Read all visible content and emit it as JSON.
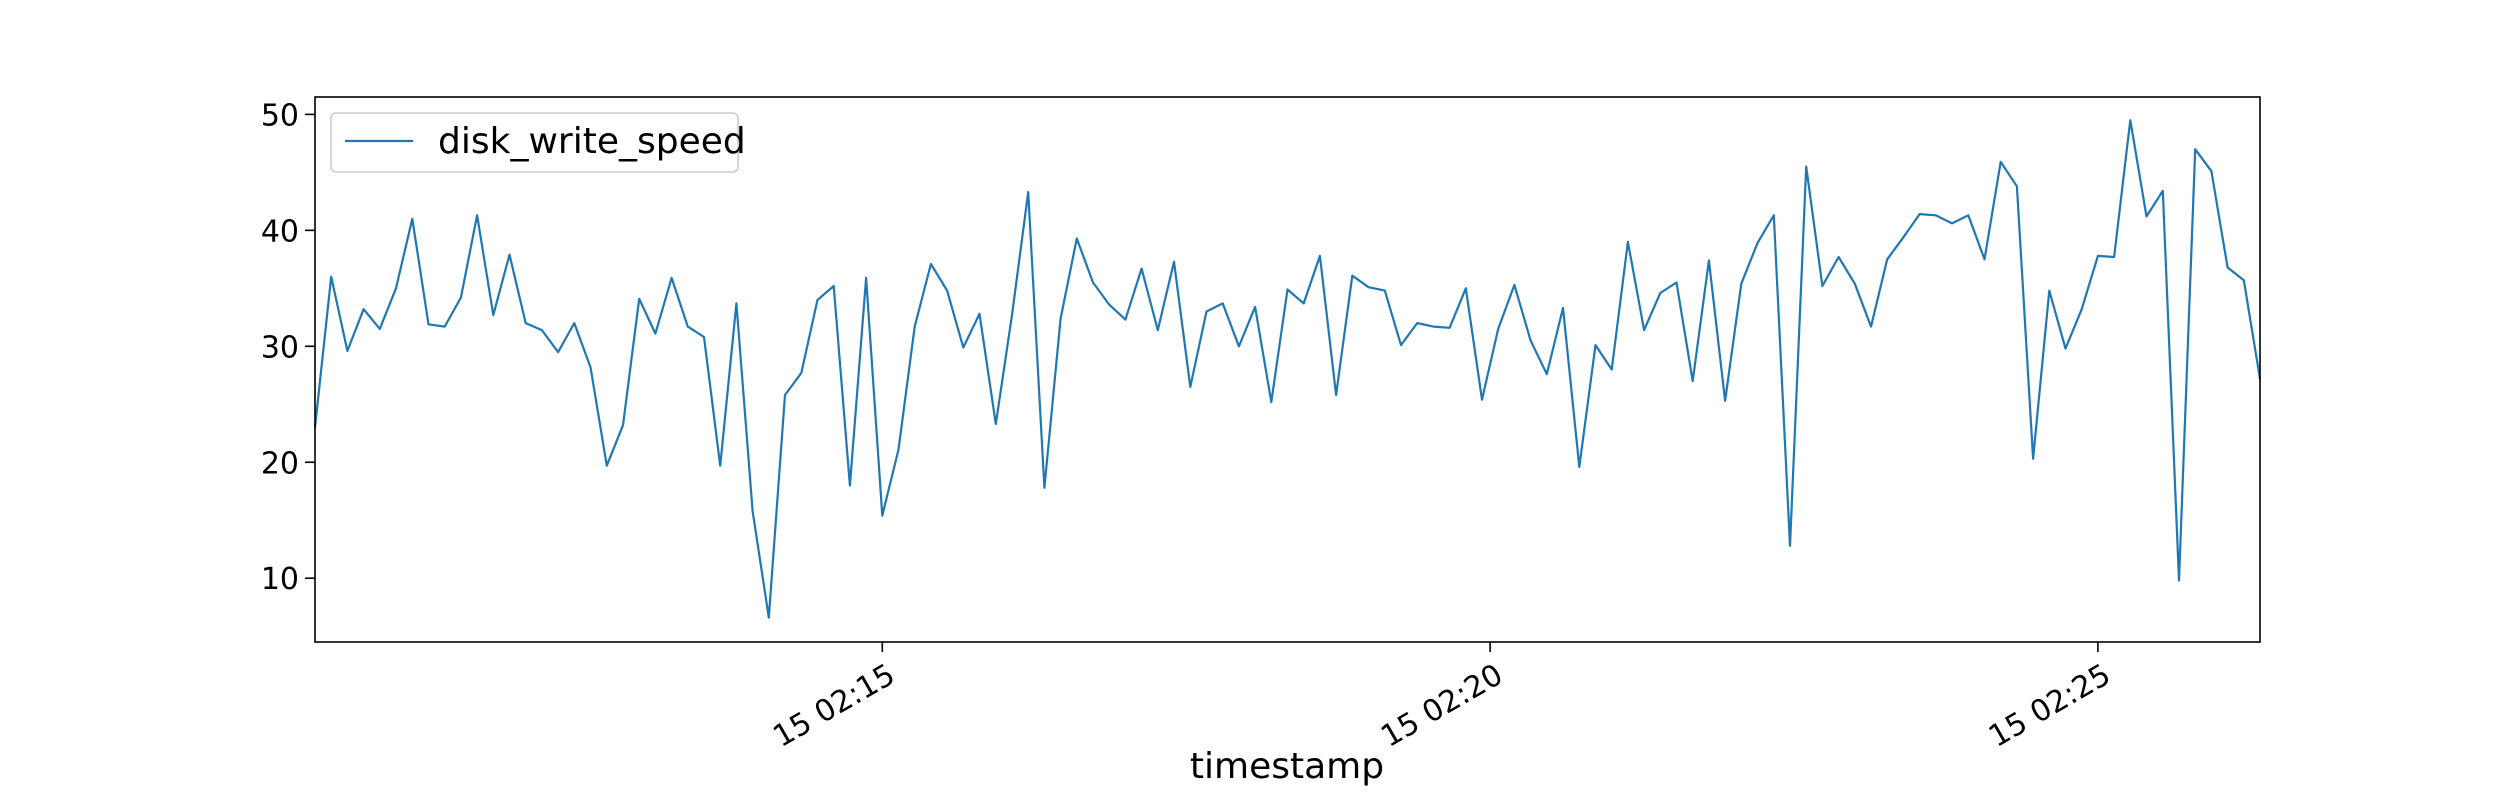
{
  "chart_data": {
    "type": "line",
    "title": "",
    "xlabel": "timestamp",
    "ylabel": "",
    "ylim": [
      4.5,
      51.5
    ],
    "xlim": [
      0,
      120
    ],
    "grid": false,
    "legend_position": "top-left",
    "y_ticks": [
      10,
      20,
      30,
      40,
      50
    ],
    "y_tick_labels": [
      "10",
      "20",
      "30",
      "40",
      "50"
    ],
    "x_ticks": [
      35,
      72.5,
      110
    ],
    "x_tick_labels": [
      "15 02:15",
      "15 02:20",
      "15 02:25"
    ],
    "series": [
      {
        "name": "disk_write_speed",
        "color": "#1f77b4",
        "x": [
          0,
          1,
          2,
          3,
          4,
          5,
          6,
          7,
          8,
          9,
          10,
          11,
          12,
          13,
          14,
          15,
          16,
          17,
          18,
          19,
          20,
          21,
          22,
          23,
          24,
          25,
          26,
          27,
          28,
          29,
          30,
          31,
          32,
          33,
          34,
          35,
          36,
          37,
          38,
          39,
          40,
          41,
          42,
          43,
          44,
          45,
          46,
          47,
          48,
          49,
          50,
          51,
          52,
          53,
          54,
          55,
          56,
          57,
          58,
          59,
          60,
          61,
          62,
          63,
          64,
          65,
          66,
          67,
          68,
          69,
          70,
          71,
          72,
          73,
          74,
          75,
          76,
          77,
          78,
          79,
          80,
          81,
          82,
          83,
          84,
          85,
          86,
          87,
          88,
          89,
          90,
          91,
          92,
          93,
          94,
          95,
          96,
          97,
          98,
          99,
          100,
          101,
          102,
          103,
          104,
          105,
          106,
          107,
          108,
          109,
          110,
          111,
          112,
          113,
          114,
          115,
          116,
          117,
          118,
          119,
          120
        ],
        "values": [
          23.0,
          36.0,
          29.6,
          33.2,
          31.5,
          35.0,
          41.0,
          31.9,
          31.7,
          34.2,
          41.3,
          32.7,
          37.9,
          32.0,
          31.4,
          29.5,
          32.0,
          28.2,
          19.7,
          23.2,
          34.1,
          31.1,
          35.9,
          31.7,
          30.8,
          19.7,
          33.7,
          15.8,
          6.6,
          25.8,
          27.7,
          34.0,
          35.2,
          18.0,
          35.9,
          15.4,
          21.1,
          31.7,
          37.1,
          34.8,
          29.9,
          32.8,
          23.3,
          32.7,
          43.3,
          17.8,
          32.4,
          39.3,
          35.5,
          33.6,
          32.3,
          36.7,
          31.4,
          37.3,
          26.5,
          33.0,
          33.7,
          30.0,
          33.4,
          25.2,
          34.9,
          33.7,
          37.8,
          25.8,
          36.1,
          35.1,
          34.8,
          30.1,
          32.0,
          31.7,
          31.6,
          35.0,
          25.4,
          31.5,
          35.3,
          30.5,
          27.6,
          33.3,
          19.6,
          30.1,
          28.0,
          39.0,
          31.4,
          34.6,
          35.5,
          27.0,
          37.4,
          25.3,
          35.4,
          38.9,
          41.3,
          12.8,
          45.5,
          35.2,
          37.7,
          35.4,
          31.7,
          37.5,
          39.4,
          41.4,
          41.3,
          40.6,
          41.3,
          37.5,
          45.9,
          43.8,
          20.3,
          34.8,
          29.8,
          33.2,
          37.8,
          37.7,
          49.5,
          41.2,
          43.4,
          9.8,
          47.0,
          45.1,
          36.8,
          35.7,
          27.2
        ]
      }
    ]
  }
}
